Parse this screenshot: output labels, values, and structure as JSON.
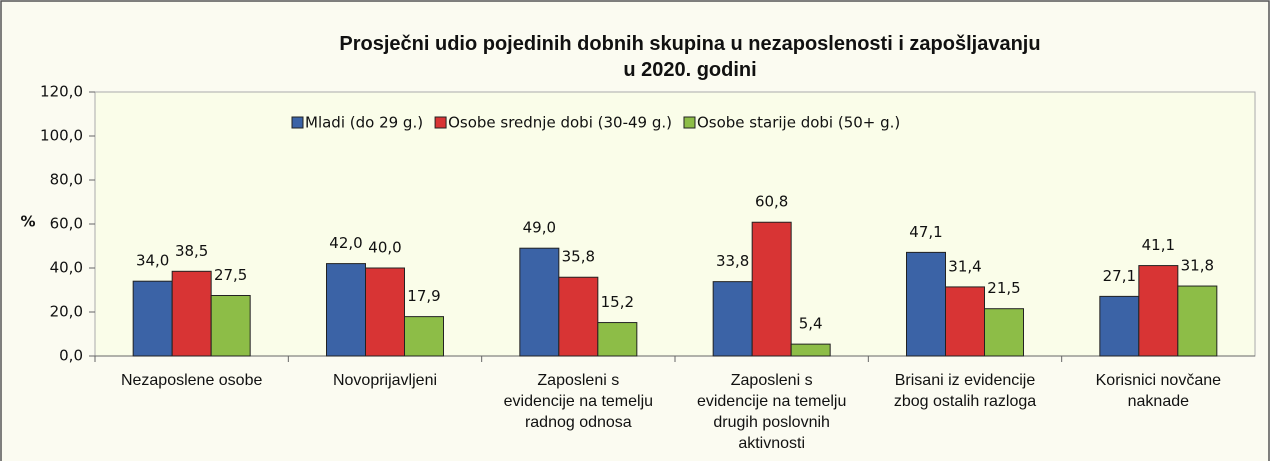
{
  "chart_data": {
    "type": "bar",
    "title": "Prosječni udio pojedinih dobnih skupina u nezaposlenosti i zapošljavanju\nu 2020. godini",
    "ylabel": "%",
    "categories": [
      "Nezaposlene osobe",
      "Novoprijavljeni",
      "Zaposleni s\nevidencije na temelju\nradnog odnosa",
      "Zaposleni s\nevidencije na temelju\ndrugih poslovnih\naktivnosti",
      "Brisani iz evidencije\nzbog ostalih razloga",
      "Korisnici novčane\nnaknade"
    ],
    "series": [
      {
        "name": "Mladi (do 29 g.)",
        "color": "#3b63a6",
        "values": [
          34.0,
          42.0,
          49.0,
          33.8,
          47.1,
          27.1
        ],
        "value_labels": [
          "34,0",
          "42,0",
          "49,0",
          "33,8",
          "47,1",
          "27,1"
        ]
      },
      {
        "name": "Osobe srednje dobi (30-49 g.)",
        "color": "#d83434",
        "values": [
          38.5,
          40.0,
          35.8,
          60.8,
          31.4,
          41.1
        ],
        "value_labels": [
          "38,5",
          "40,0",
          "35,8",
          "60,8",
          "31,4",
          "41,1"
        ]
      },
      {
        "name": "Osobe starije dobi (50+ g.)",
        "color": "#8dbd47",
        "values": [
          27.5,
          17.9,
          15.2,
          5.4,
          21.5,
          31.8
        ],
        "value_labels": [
          "27,5",
          "17,9",
          "15,2",
          "5,4",
          "21,5",
          "31,8"
        ]
      }
    ],
    "ylim": [
      0,
      120
    ],
    "yticks": [
      {
        "value": 0,
        "label": "0,0"
      },
      {
        "value": 20,
        "label": "20,0"
      },
      {
        "value": 40,
        "label": "40,0"
      },
      {
        "value": 60,
        "label": "60,0"
      },
      {
        "value": 80,
        "label": "80,0"
      },
      {
        "value": 100,
        "label": "100,0"
      },
      {
        "value": 120,
        "label": "120,0"
      }
    ],
    "legend": "top"
  }
}
